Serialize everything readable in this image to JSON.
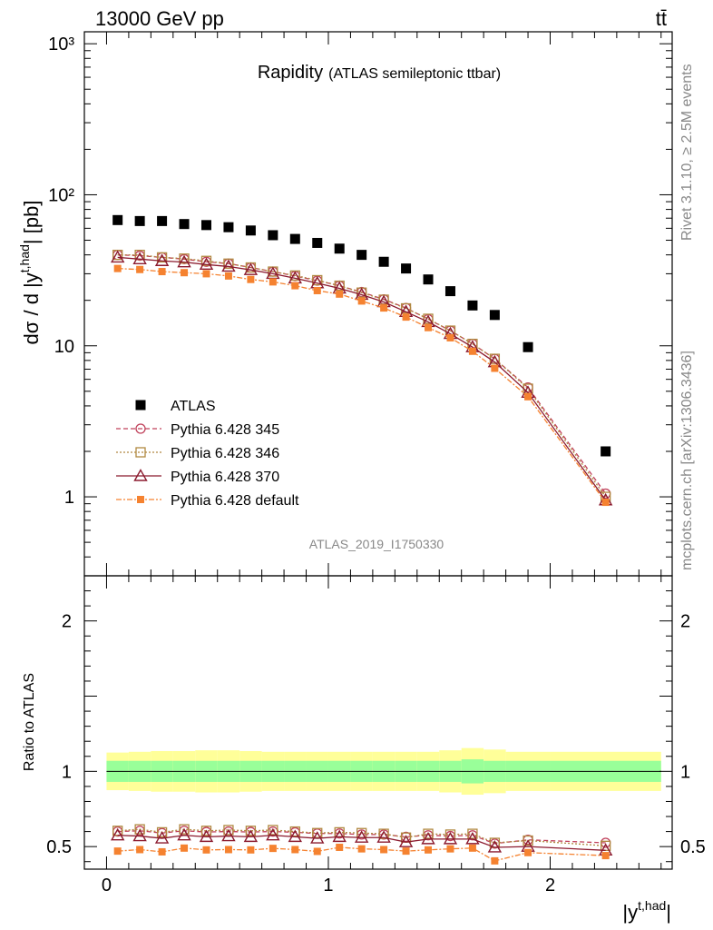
{
  "header": {
    "energy": "13000 GeV pp",
    "process": "tt̄"
  },
  "side_text": {
    "rivet": "Rivet 3.1.10, ≥ 2.5M events",
    "mcplots": "mcplots.cern.ch [arXiv:1306.3436]"
  },
  "plot_title": {
    "main": "Rapidity",
    "sub": "(ATLAS semileptonic ttbar)"
  },
  "analysis_id": "ATLAS_2019_I1750330",
  "axis": {
    "ylabel_main": "dσ / d |y",
    "ylabel_main_sup": "t,had",
    "ylabel_main_tail": "| [pb]",
    "ylabel_ratio": "Ratio to ATLAS",
    "xlabel": "|y",
    "xlabel_sup": "t,had",
    "xlabel_tail": "|"
  },
  "chart_data": [
    {
      "type": "scatter",
      "panel": "main",
      "yscale": "log",
      "xlim": [
        -0.1,
        2.55
      ],
      "ylim": [
        0.3,
        1200
      ],
      "x": [
        0.05,
        0.15,
        0.25,
        0.35,
        0.45,
        0.55,
        0.65,
        0.75,
        0.85,
        0.95,
        1.05,
        1.15,
        1.25,
        1.35,
        1.45,
        1.55,
        1.65,
        1.75,
        1.9,
        2.25
      ],
      "x_tick_labels": [
        "0",
        "1",
        "2"
      ],
      "y_tick_labels": [
        "1",
        "10",
        "10²",
        "10³"
      ],
      "series": [
        {
          "name": "ATLAS",
          "color": "#000000",
          "marker": "square-filled",
          "values": [
            68,
            67,
            67,
            64,
            63,
            61,
            58,
            54,
            51,
            48,
            44,
            40,
            36,
            32.5,
            27.5,
            23,
            18.5,
            16,
            9.8,
            2.0
          ]
        },
        {
          "name": "Pythia 6.428 345",
          "color": "#c0405a",
          "marker": "circle-open",
          "dash": "5,3",
          "values": [
            40,
            39.5,
            38.5,
            37.5,
            36,
            35,
            33,
            31,
            29,
            27,
            25,
            22.7,
            20.3,
            17.8,
            15,
            12.6,
            10.3,
            8.2,
            5.3,
            1.05
          ]
        },
        {
          "name": "Pythia 6.428 346",
          "color": "#b08840",
          "marker": "square-open",
          "dash": "2,2",
          "values": [
            40,
            40,
            38.5,
            37.8,
            36.5,
            35,
            33,
            31,
            29.2,
            27.2,
            25,
            22.5,
            20.2,
            17.7,
            15.1,
            12.6,
            10.3,
            8.2,
            5.2,
            1.0
          ]
        },
        {
          "name": "Pythia 6.428 370",
          "color": "#8b1a2e",
          "marker": "triangle-open",
          "dash": "",
          "values": [
            38.5,
            37.5,
            36.5,
            35.8,
            34.5,
            33.5,
            31.8,
            30,
            28,
            26,
            24,
            21.8,
            19.5,
            16.8,
            14.4,
            12,
            9.8,
            7.8,
            4.9,
            0.95
          ]
        },
        {
          "name": "Pythia 6.428 default",
          "color": "#f58230",
          "marker": "square-filled-small",
          "dash": "6,2,2,2",
          "values": [
            32.5,
            32,
            31,
            30.5,
            30,
            29,
            27.5,
            26.5,
            25,
            23.2,
            22,
            19.8,
            17.8,
            15.5,
            13.2,
            11.3,
            9.2,
            7.1,
            4.6,
            0.92
          ]
        }
      ]
    },
    {
      "type": "line",
      "panel": "ratio",
      "xlim": [
        -0.1,
        2.55
      ],
      "ylim": [
        0.35,
        2.3
      ],
      "y_tick_labels": [
        "0.5",
        "1",
        "2"
      ],
      "bin_edges": [
        0.0,
        0.1,
        0.2,
        0.3,
        0.4,
        0.5,
        0.6,
        0.7,
        0.8,
        0.9,
        1.0,
        1.1,
        1.2,
        1.3,
        1.4,
        1.5,
        1.6,
        1.7,
        1.8,
        2.0,
        2.5
      ],
      "band_green_halfwidth": [
        0.07,
        0.07,
        0.07,
        0.07,
        0.07,
        0.07,
        0.07,
        0.07,
        0.07,
        0.07,
        0.07,
        0.07,
        0.07,
        0.07,
        0.07,
        0.07,
        0.08,
        0.07,
        0.07,
        0.07
      ],
      "band_yellow_halfwidth": [
        0.125,
        0.13,
        0.135,
        0.135,
        0.14,
        0.14,
        0.135,
        0.13,
        0.13,
        0.13,
        0.13,
        0.13,
        0.13,
        0.13,
        0.13,
        0.14,
        0.155,
        0.145,
        0.13,
        0.13
      ],
      "x": [
        0.05,
        0.15,
        0.25,
        0.35,
        0.45,
        0.55,
        0.65,
        0.75,
        0.85,
        0.95,
        1.05,
        1.15,
        1.25,
        1.35,
        1.45,
        1.55,
        1.65,
        1.75,
        1.9,
        2.25
      ],
      "series": [
        {
          "name": "Pythia 6.428 345",
          "color": "#c0405a",
          "marker": "circle-open",
          "dash": "5,3",
          "values": [
            0.6,
            0.605,
            0.59,
            0.605,
            0.597,
            0.6,
            0.597,
            0.6,
            0.595,
            0.587,
            0.587,
            0.58,
            0.58,
            0.565,
            0.575,
            0.57,
            0.575,
            0.52,
            0.545,
            0.525
          ]
        },
        {
          "name": "Pythia 6.428 346",
          "color": "#b08840",
          "marker": "square-open",
          "dash": "2,2",
          "values": [
            0.605,
            0.615,
            0.595,
            0.615,
            0.605,
            0.61,
            0.605,
            0.61,
            0.6,
            0.59,
            0.595,
            0.59,
            0.585,
            0.56,
            0.585,
            0.58,
            0.585,
            0.525,
            0.54,
            0.505
          ]
        },
        {
          "name": "Pythia 6.428 370",
          "color": "#8b1a2e",
          "marker": "triangle-open",
          "dash": "",
          "values": [
            0.575,
            0.57,
            0.555,
            0.575,
            0.565,
            0.57,
            0.565,
            0.575,
            0.565,
            0.555,
            0.565,
            0.56,
            0.56,
            0.53,
            0.55,
            0.55,
            0.55,
            0.495,
            0.5,
            0.475
          ]
        },
        {
          "name": "Pythia 6.428 default",
          "color": "#f58230",
          "marker": "square-filled-small",
          "dash": "6,2,2,2",
          "values": [
            0.47,
            0.48,
            0.465,
            0.49,
            0.478,
            0.48,
            0.478,
            0.488,
            0.48,
            0.468,
            0.495,
            0.485,
            0.48,
            0.47,
            0.478,
            0.485,
            0.49,
            0.405,
            0.46,
            0.44
          ]
        }
      ]
    }
  ],
  "colors": {
    "band_green": "#99ff99",
    "band_yellow": "#ffff99"
  }
}
